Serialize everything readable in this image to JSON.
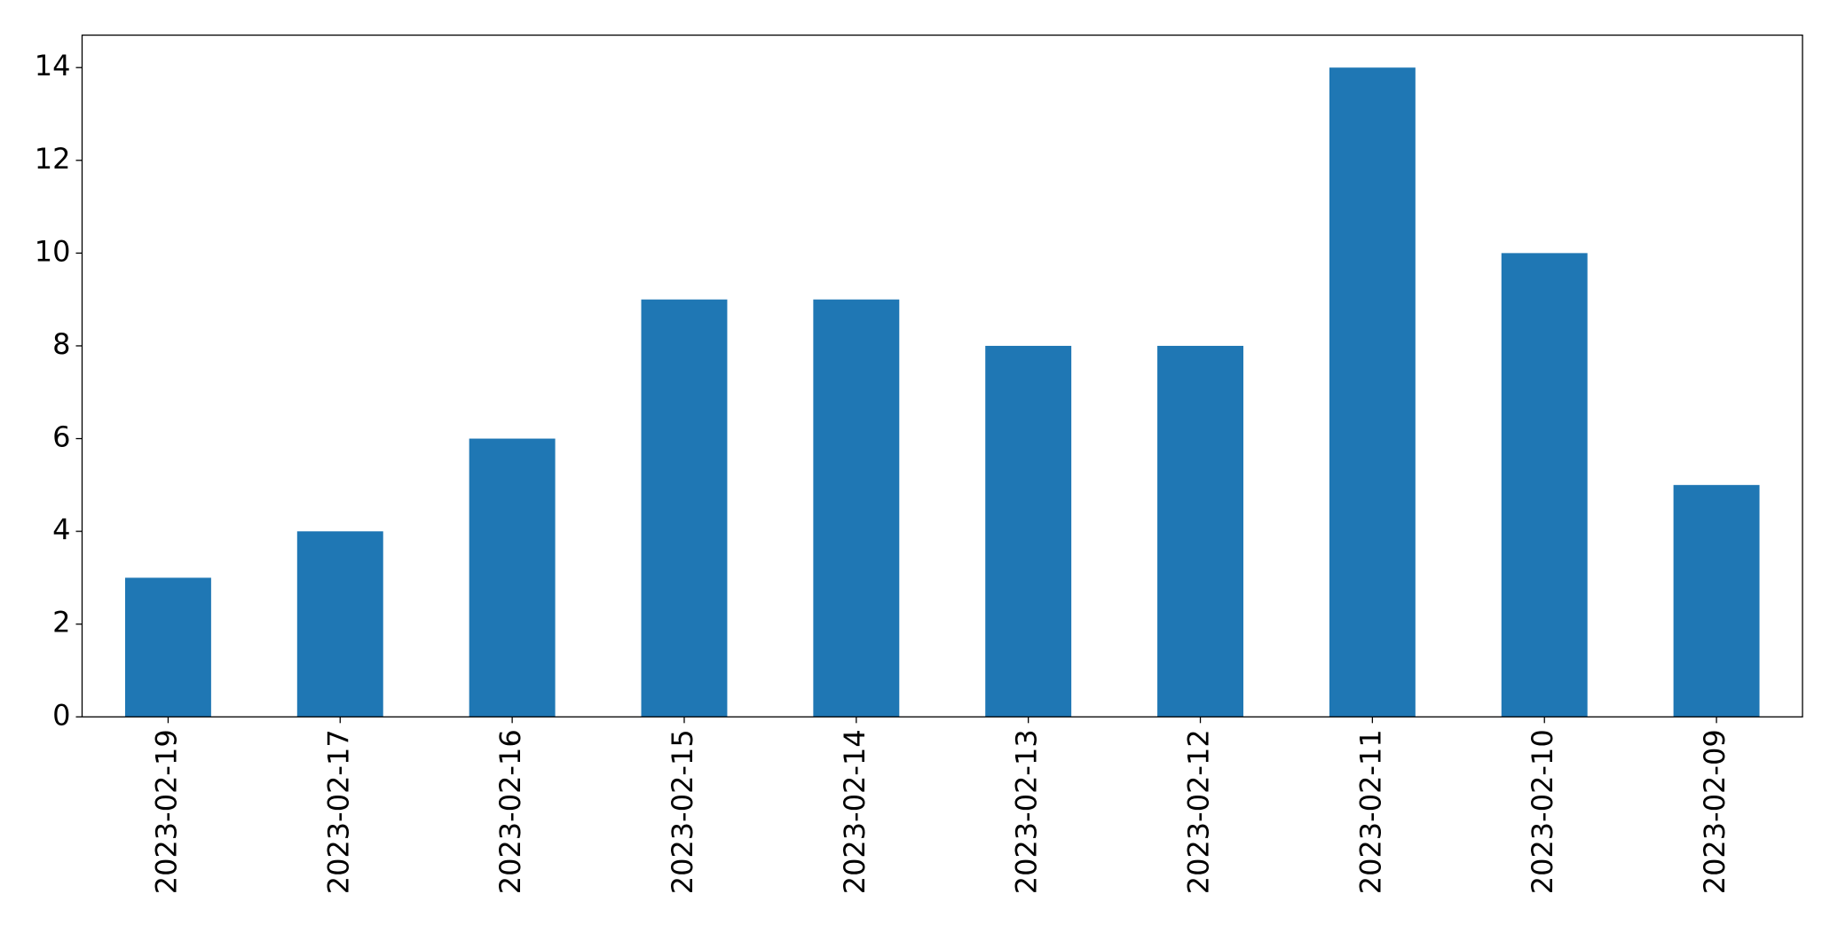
{
  "chart_data": {
    "type": "bar",
    "categories": [
      "2023-02-19",
      "2023-02-17",
      "2023-02-16",
      "2023-02-15",
      "2023-02-14",
      "2023-02-13",
      "2023-02-12",
      "2023-02-11",
      "2023-02-10",
      "2023-02-09"
    ],
    "values": [
      3,
      4,
      6,
      9,
      9,
      8,
      8,
      14,
      10,
      5
    ],
    "color": "#1f77b4",
    "ylim": [
      0,
      14.7
    ],
    "yticks": [
      0,
      2,
      4,
      6,
      8,
      10,
      12,
      14
    ],
    "grid": false
  }
}
